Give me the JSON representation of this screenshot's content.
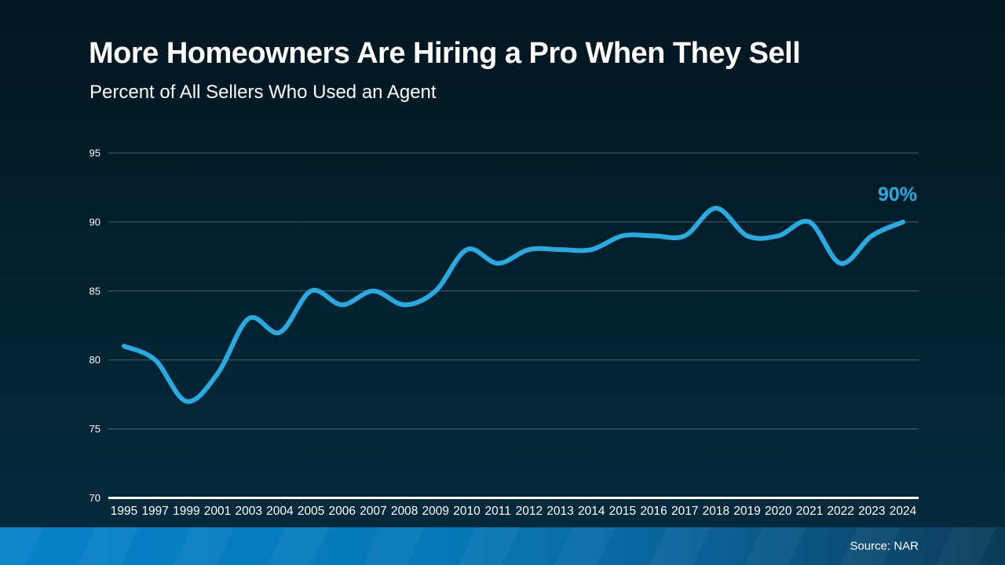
{
  "slide": {
    "title": "More Homeowners Are Hiring a Pro When They Sell",
    "subtitle": "Percent of All Sellers Who Used an Agent",
    "source": "Source: NAR",
    "end_label": "90%"
  },
  "colors": {
    "accent": "#29ABE2",
    "background_top": "#021621",
    "background_bottom": "#052C3F",
    "gridline": "#8B9399",
    "axis_line": "#FFFFFF",
    "text": "#FFFFFF",
    "footer_left": "#0681C9",
    "footer_right": "#0C3A57"
  },
  "chart_data": {
    "type": "line",
    "title": "More Homeowners Are Hiring a Pro When They Sell",
    "subtitle": "Percent of All Sellers Who Used an Agent",
    "categories": [
      "1995",
      "1997",
      "1999",
      "2001",
      "2003",
      "2004",
      "2005",
      "2006",
      "2007",
      "2008",
      "2009",
      "2010",
      "2011",
      "2012",
      "2013",
      "2014",
      "2015",
      "2016",
      "2017",
      "2018",
      "2019",
      "2020",
      "2021",
      "2022",
      "2023",
      "2024"
    ],
    "values": [
      81,
      80,
      77,
      79,
      83,
      82,
      85,
      84,
      85,
      84,
      85,
      88,
      87,
      88,
      88,
      88,
      89,
      89,
      89,
      91,
      89,
      89,
      90,
      87,
      89,
      90
    ],
    "yticks": [
      70,
      75,
      80,
      85,
      90,
      95
    ],
    "ylim": [
      70,
      95
    ],
    "xlabel": "",
    "ylabel": "",
    "grid": "horizontal",
    "legend": "none",
    "line_color": "#29ABE2",
    "annotation": {
      "text": "90%",
      "x": "2024",
      "y": 90
    }
  }
}
